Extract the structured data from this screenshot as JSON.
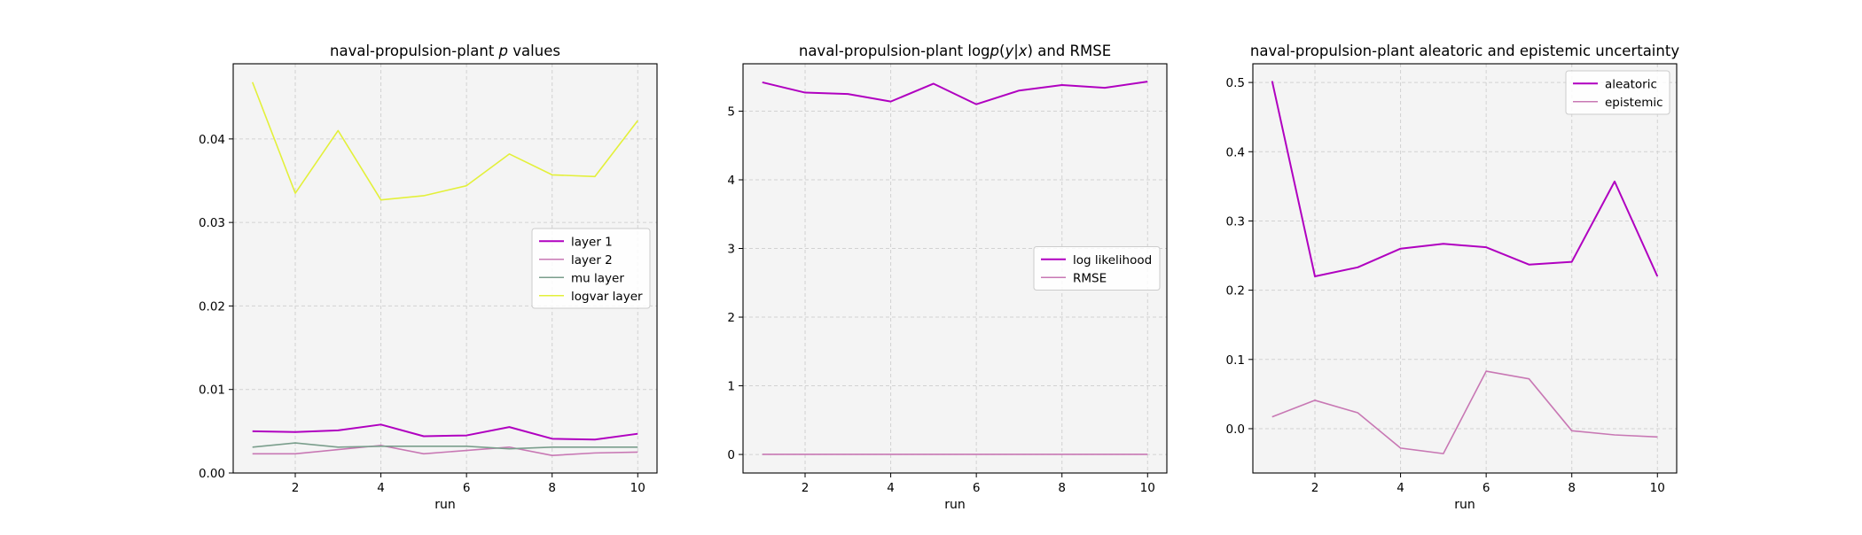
{
  "figure_background": "#ffffff",
  "axes_background": "#f4f4f4",
  "grid_color": "#d2d2d2",
  "chart_data": [
    {
      "type": "line",
      "title": "naval-propulsion-plant p values",
      "title_parts": [
        {
          "text": "naval-propulsion-plant ",
          "italic": false
        },
        {
          "text": "p",
          "italic": true
        },
        {
          "text": " values",
          "italic": false
        }
      ],
      "xlabel": "run",
      "ylabel": "",
      "xlim": [
        0.55,
        10.45
      ],
      "ylim": [
        0,
        0.049
      ],
      "xticks": [
        2,
        4,
        6,
        8,
        10
      ],
      "yticks": [
        0,
        0.01,
        0.02,
        0.03,
        0.04
      ],
      "ytick_labels": [
        "0.00",
        "0.01",
        "0.02",
        "0.03",
        "0.04"
      ],
      "grid": true,
      "legend_position": "center-right",
      "x": [
        1,
        2,
        3,
        4,
        5,
        6,
        7,
        8,
        9,
        10
      ],
      "series": [
        {
          "name": "layer 1",
          "color": "#b000c0",
          "values": [
            0.005,
            0.0049,
            0.0051,
            0.0058,
            0.0044,
            0.0045,
            0.0055,
            0.0041,
            0.004,
            0.0047
          ]
        },
        {
          "name": "layer 2",
          "color": "#c878b4",
          "values": [
            0.0023,
            0.0023,
            0.0028,
            0.0033,
            0.0023,
            0.0027,
            0.0031,
            0.0021,
            0.0024,
            0.0025
          ]
        },
        {
          "name": "mu layer",
          "color": "#7a9e8c",
          "values": [
            0.0031,
            0.0036,
            0.0031,
            0.0032,
            0.0032,
            0.0032,
            0.0029,
            0.0031,
            0.0031,
            0.0031
          ]
        },
        {
          "name": "logvar layer",
          "color": "#e3f03a",
          "values": [
            0.0468,
            0.0335,
            0.041,
            0.0327,
            0.0332,
            0.0344,
            0.0382,
            0.0357,
            0.0355,
            0.0422
          ]
        }
      ]
    },
    {
      "type": "line",
      "title": "naval-propulsion-plant logp(y|x) and RMSE",
      "title_parts": [
        {
          "text": "naval-propulsion-plant log",
          "italic": false
        },
        {
          "text": "p",
          "italic": true
        },
        {
          "text": "(",
          "italic": false
        },
        {
          "text": "y",
          "italic": true
        },
        {
          "text": "|",
          "italic": false
        },
        {
          "text": "x",
          "italic": true
        },
        {
          "text": ") and RMSE",
          "italic": false
        }
      ],
      "xlabel": "run",
      "ylabel": "",
      "xlim": [
        0.55,
        10.45
      ],
      "ylim": [
        -0.27,
        5.69
      ],
      "xticks": [
        2,
        4,
        6,
        8,
        10
      ],
      "yticks": [
        0,
        1,
        2,
        3,
        4,
        5
      ],
      "ytick_labels": [
        "0",
        "1",
        "2",
        "3",
        "4",
        "5"
      ],
      "grid": true,
      "legend_position": "center-right",
      "x": [
        1,
        2,
        3,
        4,
        5,
        6,
        7,
        8,
        9,
        10
      ],
      "series": [
        {
          "name": "log likelihood",
          "color": "#b000c0",
          "values": [
            5.42,
            5.27,
            5.25,
            5.14,
            5.4,
            5.1,
            5.3,
            5.38,
            5.34,
            5.43
          ]
        },
        {
          "name": "RMSE",
          "color": "#c878b4",
          "values": [
            0.002,
            0.002,
            0.002,
            0.002,
            0.002,
            0.002,
            0.002,
            0.002,
            0.002,
            0.002
          ]
        }
      ]
    },
    {
      "type": "line",
      "title": "naval-propulsion-plant aleatoric and epistemic uncertainty",
      "title_parts": [
        {
          "text": "naval-propulsion-plant aleatoric and epistemic uncertainty",
          "italic": false
        }
      ],
      "xlabel": "run",
      "ylabel": "",
      "xlim": [
        0.55,
        10.45
      ],
      "ylim": [
        -0.064,
        0.527
      ],
      "xticks": [
        2,
        4,
        6,
        8,
        10
      ],
      "yticks": [
        0,
        0.1,
        0.2,
        0.3,
        0.4,
        0.5
      ],
      "ytick_labels": [
        "0.0",
        "0.1",
        "0.2",
        "0.3",
        "0.4",
        "0.5"
      ],
      "grid": true,
      "legend_position": "top-right",
      "x": [
        1,
        2,
        3,
        4,
        5,
        6,
        7,
        8,
        9,
        10
      ],
      "series": [
        {
          "name": "aleatoric",
          "color": "#b000c0",
          "values": [
            0.502,
            0.22,
            0.233,
            0.26,
            0.267,
            0.262,
            0.237,
            0.241,
            0.357,
            0.22
          ]
        },
        {
          "name": "epistemic",
          "color": "#c878b4",
          "values": [
            0.017,
            0.041,
            0.023,
            -0.028,
            -0.036,
            0.083,
            0.072,
            -0.003,
            -0.009,
            -0.012
          ]
        }
      ]
    }
  ]
}
